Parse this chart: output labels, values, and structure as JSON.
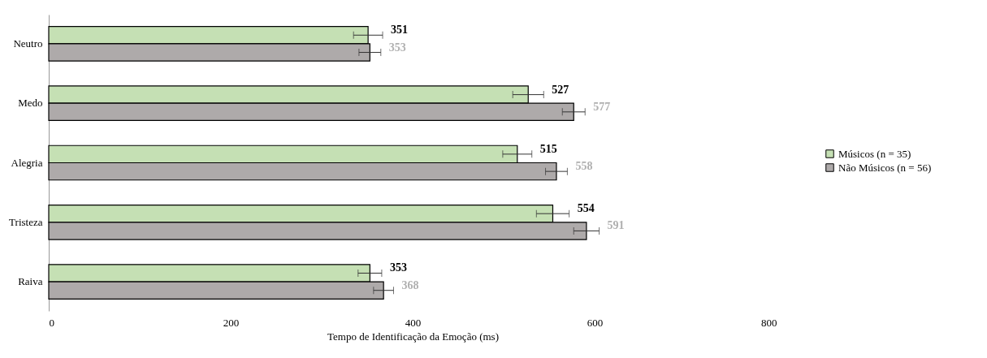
{
  "chart_data": {
    "type": "bar",
    "orientation": "horizontal",
    "xlabel": "Tempo de Identificação da Emoção (ms)",
    "categories": [
      "Neutro",
      "Medo",
      "Alegria",
      "Tristeza",
      "Raiva"
    ],
    "series": [
      {
        "name": "Músicos (n = 35)",
        "color": "#c5e0b4",
        "values": [
          351,
          527,
          515,
          554,
          353
        ],
        "errors": [
          16,
          17,
          16,
          18,
          13
        ]
      },
      {
        "name": "Não Músicos (n = 56)",
        "color": "#aeaaaa",
        "values": [
          353,
          577,
          558,
          591,
          368
        ],
        "errors": [
          12,
          12.5,
          12,
          14,
          11
        ]
      }
    ],
    "xlim": [
      0,
      800
    ],
    "xticks": [
      0,
      200,
      400,
      600,
      800
    ],
    "data_labels": true,
    "legend": "right",
    "grid": false
  }
}
